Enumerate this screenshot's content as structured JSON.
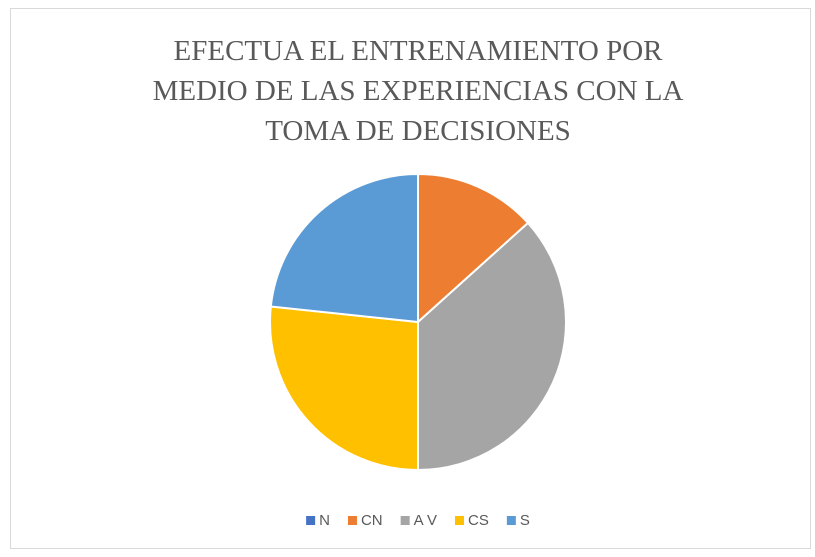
{
  "chart_data": {
    "type": "pie",
    "title": [
      "EFECTUA EL ENTRENAMIENTO  POR",
      "MEDIO DE LAS EXPERIENCIAS CON LA",
      "TOMA DE DECISIONES"
    ],
    "categories": [
      "N",
      "CN",
      "A V",
      "CS",
      "S"
    ],
    "values": [
      0,
      4,
      11,
      8,
      7
    ],
    "colors": [
      "#4472c4",
      "#ed7d31",
      "#a5a5a5",
      "#ffc000",
      "#5b9bd5"
    ],
    "legend": "bottom"
  }
}
